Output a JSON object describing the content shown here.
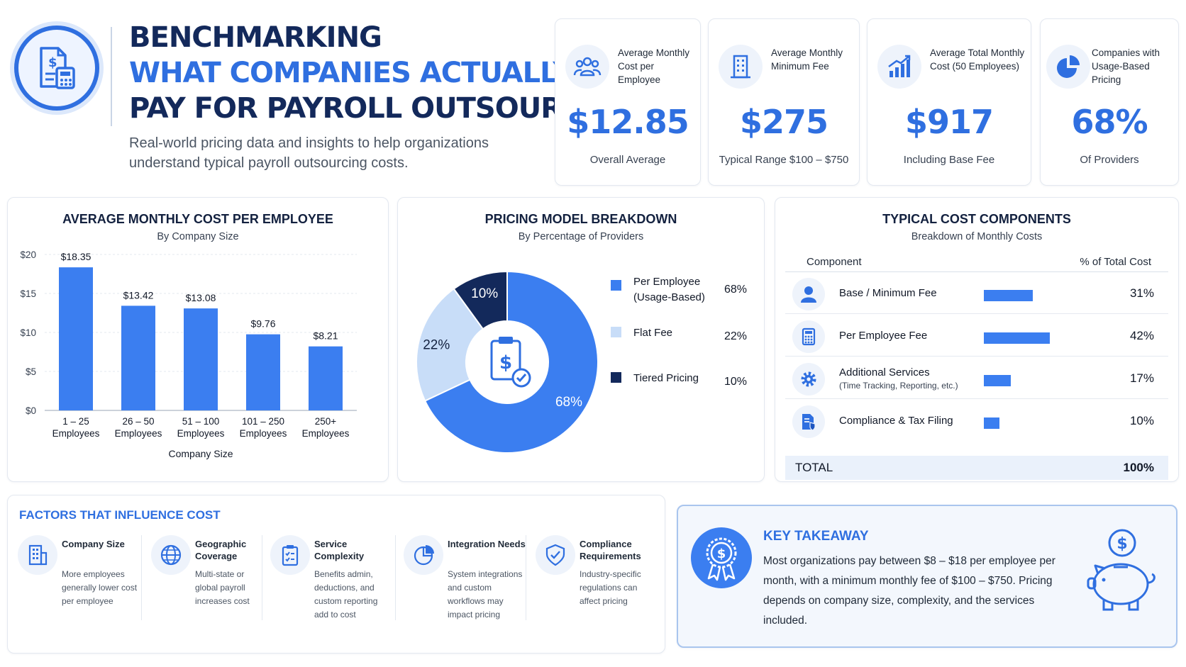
{
  "header": {
    "title_line1": "BENCHMARKING",
    "title_line2": "WHAT COMPANIES ACTUALLY",
    "title_line3": "PAY FOR PAYROLL OUTSOURCING",
    "subtitle": "Real-world pricing data and insights to help organizations understand typical payroll outsourcing costs.",
    "logo_icon": "payroll-document-calculator-icon"
  },
  "kpis": [
    {
      "label": "Average Monthly Cost per Employee",
      "value": "$12.85",
      "note": "Overall Average",
      "icon": "people-icon"
    },
    {
      "label": "Average Monthly Minimum Fee",
      "value": "$275",
      "note": "Typical Range $100 – $750",
      "icon": "building-icon"
    },
    {
      "label": "Average Total Monthly Cost (50 Employees)",
      "value": "$917",
      "note": "Including Base Fee",
      "icon": "growth-chart-icon"
    },
    {
      "label": "Companies with Usage-Based Pricing",
      "value": "68%",
      "note": "Of Providers",
      "icon": "pie-chart-icon"
    }
  ],
  "bar_panel": {
    "title": "AVERAGE MONTHLY COST PER EMPLOYEE",
    "subtitle": "By Company Size"
  },
  "donut_panel": {
    "title": "PRICING MODEL BREAKDOWN",
    "subtitle": "By Percentage of Providers",
    "center_icon": "clipboard-dollar-icon"
  },
  "components": {
    "title": "TYPICAL COST COMPONENTS",
    "subtitle": "Breakdown of Monthly Costs",
    "col_component": "Component",
    "col_pct": "% of Total Cost",
    "rows": [
      {
        "name": "Base / Minimum Fee",
        "sub": "",
        "pct": "31%",
        "value": 31,
        "icon": "user-icon"
      },
      {
        "name": "Per Employee Fee",
        "sub": "",
        "pct": "42%",
        "value": 42,
        "icon": "calculator-icon"
      },
      {
        "name": "Additional Services",
        "sub": "(Time Tracking, Reporting, etc.)",
        "pct": "17%",
        "value": 17,
        "icon": "gear-icon"
      },
      {
        "name": "Compliance & Tax Filing",
        "sub": "",
        "pct": "10%",
        "value": 10,
        "icon": "shield-document-icon"
      }
    ],
    "total_label": "TOTAL",
    "total_pct": "100%"
  },
  "factors": {
    "title": "FACTORS THAT INFLUENCE COST",
    "items": [
      {
        "title": "Company Size",
        "desc": "More employees generally lower cost per employee",
        "icon": "building-icon"
      },
      {
        "title": "Geographic Coverage",
        "desc": "Multi-state or global payroll increases cost",
        "icon": "globe-icon"
      },
      {
        "title": "Service Complexity",
        "desc": "Benefits admin, deductions, and custom reporting add to cost",
        "icon": "checklist-icon"
      },
      {
        "title": "Integration Needs",
        "desc": "System integrations and custom workflows may impact pricing",
        "icon": "pie-chart-icon"
      },
      {
        "title": "Compliance Requirements",
        "desc": "Industry-specific regulations can affect pricing",
        "icon": "shield-check-icon"
      }
    ]
  },
  "takeaway": {
    "title": "KEY TAKEAWAY",
    "text": "Most organizations pay between $8 – $18 per employee per month, with a minimum monthly fee of $100 – $750. Pricing depends on company size, complexity, and the services included.",
    "badge_icon": "dollar-award-icon",
    "side_icon": "piggy-bank-icon"
  },
  "colors": {
    "accent": "#2f6fe0",
    "bar": "#3b7ef0",
    "navy": "#13295b",
    "light_blue": "#c8ddf8"
  },
  "chart_data": [
    {
      "type": "bar",
      "title": "AVERAGE MONTHLY COST PER EMPLOYEE",
      "subtitle": "By Company Size",
      "xlabel": "Company Size",
      "ylabel": "",
      "categories": [
        "1 – 25 Employees",
        "26 – 50 Employees",
        "51 – 100 Employees",
        "101 – 250 Employees",
        "250+ Employees"
      ],
      "category_lines": [
        [
          "1 – 25",
          "Employees"
        ],
        [
          "26 – 50",
          "Employees"
        ],
        [
          "51 – 100",
          "Employees"
        ],
        [
          "101 – 250",
          "Employees"
        ],
        [
          "250+",
          "Employees"
        ]
      ],
      "values": [
        18.35,
        13.42,
        13.08,
        9.76,
        8.21
      ],
      "value_labels": [
        "$18.35",
        "$13.42",
        "$13.08",
        "$9.76",
        "$8.21"
      ],
      "ylim": [
        0,
        20
      ],
      "yticks": [
        0,
        5,
        10,
        15,
        20
      ],
      "ytick_labels": [
        "$0",
        "$5",
        "$10",
        "$15",
        "$20"
      ],
      "grid": true,
      "legend": "none"
    },
    {
      "type": "pie",
      "title": "PRICING MODEL BREAKDOWN",
      "subtitle": "By Percentage of Providers",
      "donut": true,
      "legend": "right",
      "slices": [
        {
          "label": "Per Employee (Usage-Based)",
          "lines": [
            "Per Employee",
            "(Usage-Based)"
          ],
          "value": 68,
          "pct_label": "68%",
          "color": "#3b7ef0"
        },
        {
          "label": "Flat Fee",
          "lines": [
            "Flat Fee"
          ],
          "value": 22,
          "pct_label": "22%",
          "color": "#c8ddf8"
        },
        {
          "label": "Tiered Pricing",
          "lines": [
            "Tiered Pricing"
          ],
          "value": 10,
          "pct_label": "10%",
          "color": "#13295b"
        }
      ]
    }
  ]
}
